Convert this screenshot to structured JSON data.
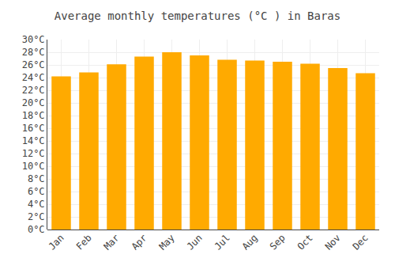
{
  "chart_data": {
    "type": "bar",
    "title": "Average monthly temperatures (°C ) in Baras",
    "categories": [
      "Jan",
      "Feb",
      "Mar",
      "Apr",
      "May",
      "Jun",
      "Jul",
      "Aug",
      "Sep",
      "Oct",
      "Nov",
      "Dec"
    ],
    "values": [
      24.2,
      24.8,
      26.1,
      27.3,
      28.0,
      27.5,
      26.8,
      26.7,
      26.5,
      26.2,
      25.5,
      24.7
    ],
    "color": "#FFAA00",
    "ylim": [
      0,
      30
    ],
    "yticks": [
      {
        "value": 0,
        "label": "0°C"
      },
      {
        "value": 2,
        "label": "2°C"
      },
      {
        "value": 4,
        "label": "4°C"
      },
      {
        "value": 6,
        "label": "6°C"
      },
      {
        "value": 8,
        "label": "8°C"
      },
      {
        "value": 10,
        "label": "10°C"
      },
      {
        "value": 12,
        "label": "12°C"
      },
      {
        "value": 14,
        "label": "14°C"
      },
      {
        "value": 16,
        "label": "16°C"
      },
      {
        "value": 18,
        "label": "18°C"
      },
      {
        "value": 20,
        "label": "20°C"
      },
      {
        "value": 22,
        "label": "22°C"
      },
      {
        "value": 24,
        "label": "24°C"
      },
      {
        "value": 26,
        "label": "26°C"
      },
      {
        "value": 28,
        "label": "28°C"
      },
      {
        "value": 30,
        "label": "30°C"
      }
    ],
    "grid": true
  }
}
